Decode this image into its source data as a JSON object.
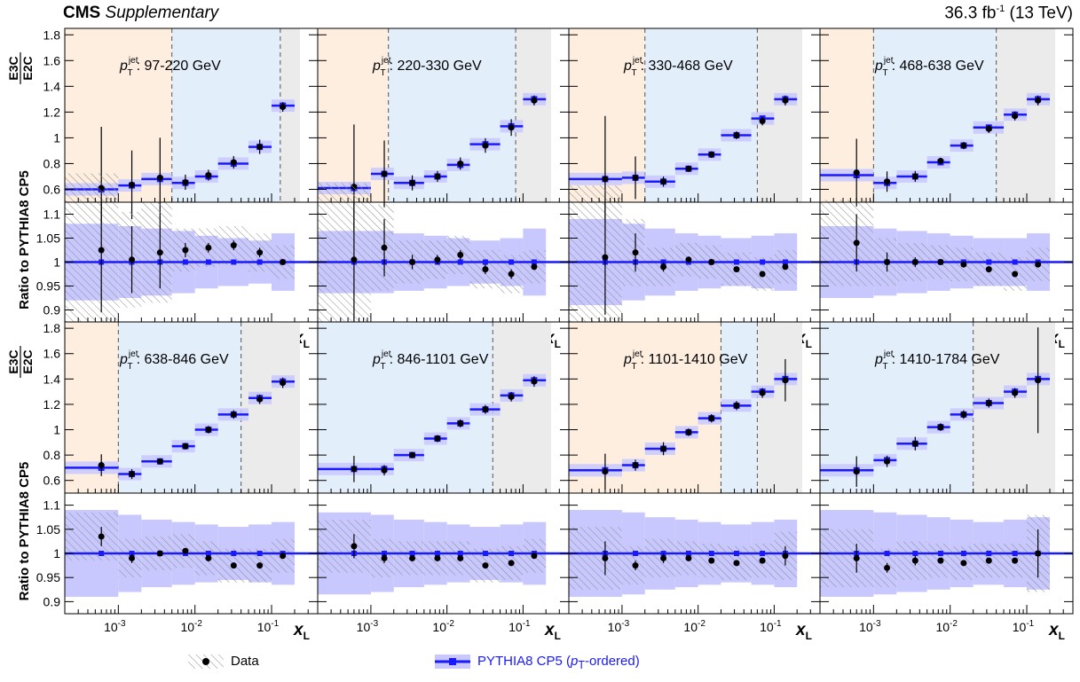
{
  "header": {
    "experiment": "CMS",
    "label": "Supplementary",
    "lumi": "36.3 fb",
    "lumi_exp": "-1",
    "energy": " (13 TeV)"
  },
  "legend": {
    "data_label": "Data",
    "mc_label_pre": "PYTHIA8 CP5 (",
    "mc_label_sym": "p",
    "mc_label_sub": "T",
    "mc_label_post": "-ordered)"
  },
  "colors": {
    "mc": "#1a1aff",
    "mc_band": "#c8c8ff",
    "data": "#000000",
    "region_low": "#fdeee0",
    "region_mid": "#e3eefb",
    "region_high": "#ebebeb"
  },
  "labels": {
    "top_ylabel_num": "E3C",
    "top_ylabel_den": "E2C",
    "ratio_ylabel": "Ratio to PYTHIA8 CP5",
    "x_label_sym": "x",
    "x_label_sub": "L",
    "ptlabel_sym": "p",
    "ptlabel_sub": "T",
    "ptlabel_sup": "jet"
  },
  "chart_data": {
    "type": "scatter",
    "x_scale": "log",
    "xlim": [
      0.0002,
      0.4
    ],
    "x_ticks": [
      "10^-3",
      "10^-2",
      "10^-1"
    ],
    "top_ylim": [
      0.5,
      1.85
    ],
    "top_yticks": [
      "0.6",
      "0.8",
      "1",
      "1.2",
      "1.4",
      "1.6",
      "1.8"
    ],
    "ratio_ylim": [
      0.875,
      1.125
    ],
    "ratio_yticks": [
      "0.9",
      "0.95",
      "1",
      "1.05",
      "1.1"
    ],
    "bin_edges": [
      0.0002,
      0.001,
      0.002,
      0.005,
      0.01,
      0.02,
      0.05,
      0.1,
      0.2,
      0.4
    ],
    "panels": [
      {
        "label": "97-220 GeV",
        "dashed": [
          0.005,
          0.13
        ],
        "x": [
          0.0006,
          0.0015,
          0.0035,
          0.0075,
          0.015,
          0.032,
          0.07,
          0.14
        ],
        "mc_y": [
          0.6,
          0.63,
          0.68,
          0.65,
          0.7,
          0.8,
          0.93,
          1.25
        ],
        "data_y": [
          0.61,
          0.635,
          0.69,
          0.655,
          0.71,
          0.81,
          0.93,
          1.24
        ],
        "ratio": [
          1.025,
          1.005,
          1.02,
          1.025,
          1.03,
          1.035,
          1.02,
          1.0
        ],
        "ratio_err": [
          0.13,
          0.07,
          0.075,
          0.015,
          0.01,
          0.01,
          0.01,
          0.005
        ],
        "band_half": [
          0.08,
          0.075,
          0.07,
          0.065,
          0.055,
          0.05,
          0.045,
          0.06
        ]
      },
      {
        "label": "220-330 GeV",
        "dashed": [
          0.0017,
          0.08
        ],
        "x": [
          0.0006,
          0.0015,
          0.0035,
          0.0075,
          0.015,
          0.032,
          0.07,
          0.14
        ],
        "mc_y": [
          0.61,
          0.72,
          0.65,
          0.7,
          0.79,
          0.95,
          1.09,
          1.3
        ],
        "data_y": [
          0.62,
          0.72,
          0.65,
          0.7,
          0.8,
          0.94,
          1.08,
          1.29
        ],
        "ratio": [
          1.005,
          1.03,
          1.0,
          1.005,
          1.015,
          0.985,
          0.975,
          0.99
        ],
        "ratio_err": [
          0.13,
          0.06,
          0.015,
          0.01,
          0.01,
          0.01,
          0.01,
          0.005
        ],
        "band_half": [
          0.065,
          0.065,
          0.06,
          0.055,
          0.05,
          0.045,
          0.05,
          0.07
        ]
      },
      {
        "label": "330-468 GeV",
        "dashed": [
          0.002,
          0.06
        ],
        "x": [
          0.0006,
          0.0015,
          0.0035,
          0.0075,
          0.015,
          0.032,
          0.07,
          0.14
        ],
        "mc_y": [
          0.68,
          0.69,
          0.66,
          0.76,
          0.87,
          1.02,
          1.15,
          1.3
        ],
        "data_y": [
          0.68,
          0.69,
          0.66,
          0.76,
          0.87,
          1.02,
          1.13,
          1.29
        ],
        "ratio": [
          1.01,
          1.02,
          0.99,
          1.005,
          1.0,
          0.985,
          0.975,
          0.99
        ],
        "ratio_err": [
          0.12,
          0.04,
          0.01,
          0.005,
          0.005,
          0.005,
          0.005,
          0.005
        ],
        "band_half": [
          0.09,
          0.08,
          0.07,
          0.06,
          0.055,
          0.05,
          0.055,
          0.06
        ]
      },
      {
        "label": "468-638 GeV",
        "dashed": [
          0.001,
          0.04
        ],
        "x": [
          0.0006,
          0.0015,
          0.0035,
          0.0075,
          0.015,
          0.032,
          0.07,
          0.14
        ],
        "mc_y": [
          0.71,
          0.65,
          0.7,
          0.81,
          0.94,
          1.08,
          1.18,
          1.3
        ],
        "data_y": [
          0.73,
          0.66,
          0.7,
          0.82,
          0.94,
          1.07,
          1.17,
          1.29
        ],
        "ratio": [
          1.04,
          1.0,
          1.0,
          1.0,
          0.995,
          0.985,
          0.975,
          0.995
        ],
        "ratio_err": [
          0.06,
          0.02,
          0.01,
          0.005,
          0.005,
          0.005,
          0.005,
          0.005
        ],
        "band_half": [
          0.075,
          0.07,
          0.065,
          0.06,
          0.055,
          0.05,
          0.05,
          0.06
        ]
      },
      {
        "label": "638-846 GeV",
        "dashed": [
          0.001,
          0.04
        ],
        "x": [
          0.0006,
          0.0015,
          0.0035,
          0.0075,
          0.015,
          0.032,
          0.07,
          0.14
        ],
        "mc_y": [
          0.7,
          0.65,
          0.75,
          0.87,
          1.0,
          1.12,
          1.25,
          1.38
        ],
        "data_y": [
          0.72,
          0.65,
          0.75,
          0.87,
          1.0,
          1.12,
          1.24,
          1.37
        ],
        "ratio": [
          1.035,
          0.99,
          1.0,
          1.005,
          0.99,
          0.975,
          0.975,
          0.995
        ],
        "ratio_err": [
          0.02,
          0.01,
          0.005,
          0.005,
          0.005,
          0.005,
          0.005,
          0.005
        ],
        "band_half": [
          0.09,
          0.08,
          0.07,
          0.065,
          0.06,
          0.055,
          0.06,
          0.065
        ]
      },
      {
        "label": "846-1101 GeV",
        "dashed": [
          0.04
        ],
        "x": [
          0.0006,
          0.0015,
          0.0035,
          0.0075,
          0.015,
          0.032,
          0.07,
          0.14
        ],
        "mc_y": [
          0.69,
          0.69,
          0.8,
          0.93,
          1.05,
          1.16,
          1.27,
          1.39
        ],
        "data_y": [
          0.69,
          0.68,
          0.8,
          0.93,
          1.05,
          1.16,
          1.26,
          1.38
        ],
        "ratio": [
          1.015,
          0.99,
          0.99,
          0.99,
          0.99,
          0.975,
          0.98,
          0.995
        ],
        "ratio_err": [
          0.025,
          0.01,
          0.005,
          0.005,
          0.005,
          0.005,
          0.005,
          0.005
        ],
        "band_half": [
          0.085,
          0.08,
          0.07,
          0.065,
          0.06,
          0.055,
          0.06,
          0.065
        ]
      },
      {
        "label": "1101-1410 GeV",
        "dashed": [
          0.02,
          0.06
        ],
        "x": [
          0.0006,
          0.0015,
          0.0035,
          0.0075,
          0.015,
          0.032,
          0.07,
          0.14
        ],
        "mc_y": [
          0.68,
          0.72,
          0.85,
          0.98,
          1.09,
          1.19,
          1.3,
          1.4
        ],
        "data_y": [
          0.67,
          0.72,
          0.85,
          0.98,
          1.09,
          1.19,
          1.29,
          1.39
        ],
        "ratio": [
          0.99,
          0.975,
          0.99,
          0.99,
          0.985,
          0.98,
          0.985,
          0.995
        ],
        "ratio_err": [
          0.035,
          0.01,
          0.01,
          0.005,
          0.005,
          0.005,
          0.005,
          0.02
        ],
        "band_half": [
          0.09,
          0.085,
          0.075,
          0.07,
          0.065,
          0.06,
          0.065,
          0.07
        ]
      },
      {
        "label": "1410-1784 GeV",
        "dashed": [
          0.02
        ],
        "x": [
          0.0006,
          0.0015,
          0.0035,
          0.0075,
          0.015,
          0.032,
          0.07,
          0.14
        ],
        "mc_y": [
          0.68,
          0.76,
          0.89,
          1.02,
          1.12,
          1.21,
          1.3,
          1.4
        ],
        "data_y": [
          0.67,
          0.75,
          0.89,
          1.02,
          1.12,
          1.21,
          1.29,
          1.39
        ],
        "ratio": [
          0.99,
          0.97,
          0.985,
          0.985,
          0.98,
          0.985,
          0.985,
          1.0
        ],
        "ratio_err": [
          0.03,
          0.01,
          0.01,
          0.005,
          0.005,
          0.005,
          0.005,
          0.05
        ],
        "band_half": [
          0.09,
          0.085,
          0.08,
          0.075,
          0.07,
          0.065,
          0.07,
          0.075
        ]
      }
    ]
  }
}
